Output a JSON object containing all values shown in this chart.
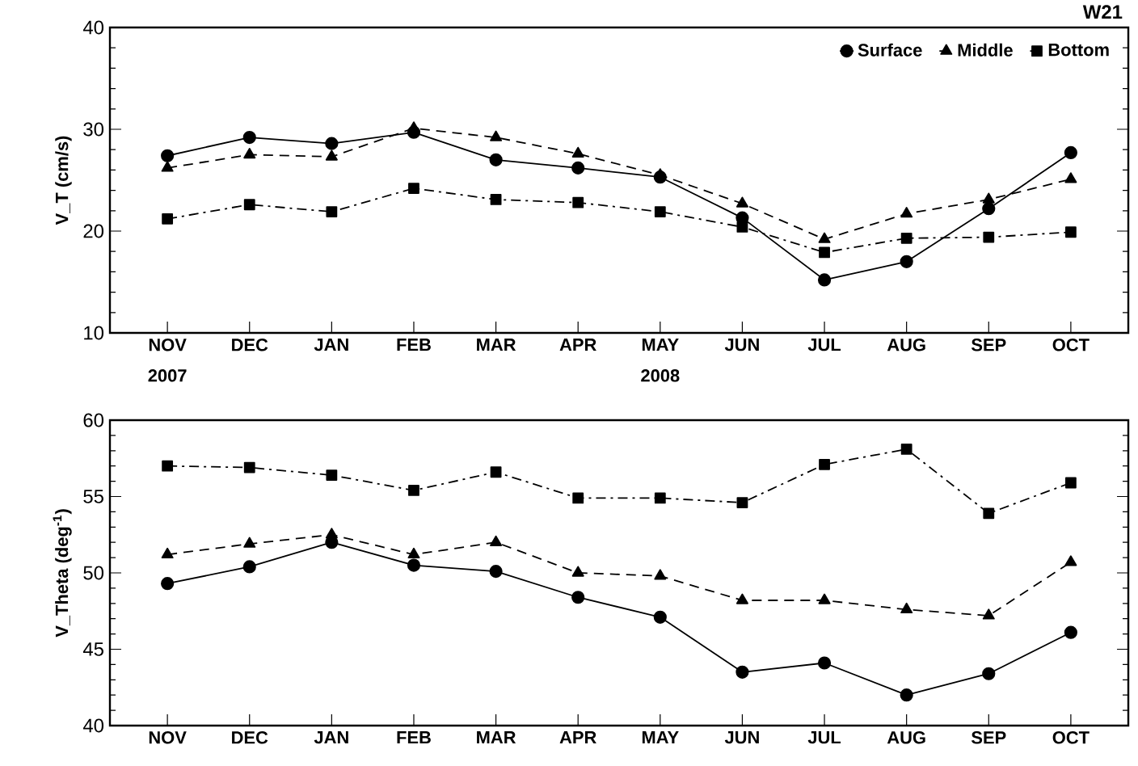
{
  "chart_data": [
    {
      "type": "line",
      "title": "W21",
      "ylabel": "V_T (cm/s)",
      "categories": [
        "NOV",
        "DEC",
        "JAN",
        "FEB",
        "MAR",
        "APR",
        "MAY",
        "JUN",
        "JUL",
        "AUG",
        "SEP",
        "OCT"
      ],
      "series": [
        {
          "name": "Surface",
          "color": "#000000",
          "marker": "circle",
          "line_style": "solid",
          "values": [
            27.4,
            29.2,
            28.6,
            29.7,
            27.0,
            26.2,
            25.3,
            21.3,
            15.2,
            17.0,
            22.2,
            27.7
          ]
        },
        {
          "name": "Middle",
          "color": "#000000",
          "marker": "triangle",
          "line_style": "dashed",
          "values": [
            26.2,
            27.5,
            27.3,
            30.1,
            29.2,
            27.6,
            25.5,
            22.7,
            19.2,
            21.7,
            23.1,
            25.1
          ]
        },
        {
          "name": "Bottom",
          "color": "#000000",
          "marker": "square",
          "line_style": "dashdot",
          "values": [
            21.2,
            22.6,
            21.9,
            24.2,
            23.1,
            22.8,
            21.9,
            20.4,
            17.9,
            19.3,
            19.4,
            19.9
          ]
        }
      ],
      "ylim": [
        10,
        40
      ],
      "yticks": [
        10,
        20,
        30,
        40
      ],
      "legend": "top right",
      "grid": false,
      "annotations": [
        "2007",
        "2008"
      ]
    },
    {
      "type": "line",
      "ylabel": "V_Theta (deg$^{-1}$)",
      "categories": [
        "NOV",
        "DEC",
        "JAN",
        "FEB",
        "MAR",
        "APR",
        "MAY",
        "JUN",
        "JUL",
        "AUG",
        "SEP",
        "OCT"
      ],
      "series": [
        {
          "color": "#000000",
          "marker": "circle",
          "line_style": "solid",
          "values": [
            49.3,
            50.4,
            52.0,
            50.5,
            50.1,
            48.4,
            47.1,
            43.5,
            44.1,
            42.0,
            43.4,
            46.1
          ]
        },
        {
          "color": "#000000",
          "marker": "triangle",
          "line_style": "dashed",
          "values": [
            51.2,
            51.9,
            52.5,
            51.2,
            52.0,
            50.0,
            49.8,
            48.2,
            48.2,
            47.6,
            47.2,
            50.7
          ]
        },
        {
          "color": "#000000",
          "marker": "square",
          "line_style": "dashdot",
          "values": [
            57.0,
            56.9,
            56.4,
            55.4,
            56.6,
            54.9,
            54.9,
            54.6,
            57.1,
            58.1,
            53.9,
            55.9
          ]
        }
      ],
      "ylim": [
        40,
        60
      ],
      "yticks": [
        40,
        45,
        50,
        55,
        60
      ],
      "legend": false,
      "grid": false
    }
  ]
}
